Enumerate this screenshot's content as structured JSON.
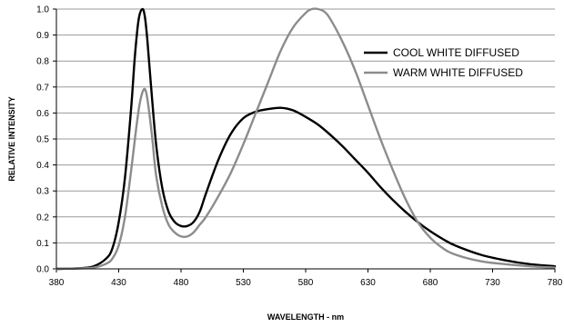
{
  "chart_data": {
    "type": "line",
    "xlabel": "WAVELENGTH - nm",
    "ylabel": "RELATIVE INTENSITY",
    "xlim": [
      380,
      780
    ],
    "ylim": [
      0,
      1.0
    ],
    "xticks": [
      "380",
      "430",
      "480",
      "530",
      "580",
      "630",
      "680",
      "730",
      "780"
    ],
    "yticks": [
      "0.0",
      "0.1",
      "0.2",
      "0.3",
      "0.4",
      "0.5",
      "0.6",
      "0.7",
      "0.8",
      "0.9",
      "1.0"
    ],
    "grid": "horizontal",
    "legend_position": "top-right",
    "series": [
      {
        "name": "COOL WHITE DIFFUSED",
        "color": "#000000",
        "x": [
          380,
          400,
          410,
          420,
          425,
          430,
          435,
          440,
          443,
          446,
          449,
          451,
          453,
          456,
          460,
          465,
          470,
          475,
          480,
          485,
          490,
          495,
          500,
          510,
          520,
          530,
          540,
          550,
          560,
          570,
          580,
          590,
          600,
          610,
          620,
          630,
          640,
          650,
          660,
          670,
          680,
          690,
          700,
          720,
          740,
          760,
          780
        ],
        "y": [
          0.0,
          0.003,
          0.01,
          0.04,
          0.08,
          0.18,
          0.35,
          0.62,
          0.82,
          0.96,
          1.0,
          0.97,
          0.88,
          0.7,
          0.48,
          0.31,
          0.22,
          0.18,
          0.165,
          0.165,
          0.18,
          0.22,
          0.29,
          0.42,
          0.52,
          0.58,
          0.605,
          0.615,
          0.62,
          0.61,
          0.585,
          0.555,
          0.515,
          0.47,
          0.42,
          0.37,
          0.315,
          0.265,
          0.22,
          0.18,
          0.145,
          0.115,
          0.09,
          0.055,
          0.033,
          0.018,
          0.01
        ]
      },
      {
        "name": "WARM WHITE DIFFUSED",
        "color": "#8c8c8c",
        "x": [
          380,
          400,
          410,
          420,
          425,
          430,
          435,
          440,
          444,
          447,
          450,
          452,
          454,
          457,
          460,
          465,
          470,
          475,
          480,
          485,
          490,
          495,
          500,
          510,
          520,
          530,
          540,
          550,
          560,
          570,
          580,
          585,
          590,
          595,
          600,
          610,
          620,
          630,
          640,
          650,
          660,
          670,
          680,
          690,
          700,
          720,
          740,
          760,
          780
        ],
        "y": [
          0.0,
          0.002,
          0.005,
          0.02,
          0.04,
          0.09,
          0.2,
          0.38,
          0.54,
          0.64,
          0.69,
          0.68,
          0.62,
          0.5,
          0.36,
          0.24,
          0.17,
          0.14,
          0.125,
          0.125,
          0.14,
          0.17,
          0.2,
          0.28,
          0.37,
          0.48,
          0.6,
          0.72,
          0.84,
          0.93,
          0.985,
          1.0,
          1.0,
          0.99,
          0.96,
          0.87,
          0.76,
          0.63,
          0.5,
          0.38,
          0.27,
          0.18,
          0.12,
          0.08,
          0.055,
          0.03,
          0.018,
          0.01,
          0.005
        ]
      }
    ]
  }
}
